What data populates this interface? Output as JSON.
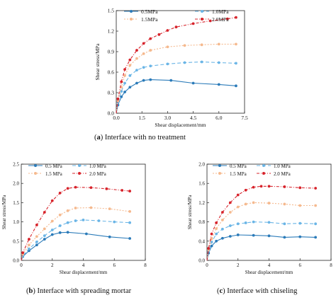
{
  "captions": [
    {
      "letter": "a",
      "text": "Interface with no treatment"
    },
    {
      "letter": "b",
      "text": "Interface with spreading mortar"
    },
    {
      "letter": "c",
      "text": "Interface with chiseling"
    }
  ],
  "chart_data": [
    {
      "type": "line",
      "xlabel": "Shear displacement/mm",
      "ylabel": "Shear stress/MPa",
      "xlim": [
        0,
        7.5
      ],
      "ylim": [
        0,
        1.5
      ],
      "xticks": [
        "0.0",
        "1.5",
        "3.0",
        "4.5",
        "6.0",
        "7.5"
      ],
      "yticks": [
        "0.0",
        "0.3",
        "0.6",
        "0.9",
        "1.2",
        "1.5"
      ],
      "grid": false,
      "legend_position": "top-left",
      "series": [
        {
          "name": "0.5MPa",
          "color": "#2b7bb9",
          "x": [
            0,
            0.1,
            0.3,
            0.5,
            0.8,
            1.2,
            1.6,
            2.0,
            3.2,
            4.5,
            6.0,
            7.0
          ],
          "y": [
            0,
            0.12,
            0.24,
            0.31,
            0.38,
            0.44,
            0.48,
            0.49,
            0.48,
            0.44,
            0.42,
            0.4
          ]
        },
        {
          "name": "1.0MPa",
          "color": "#6ab5e6",
          "x": [
            0,
            0.1,
            0.3,
            0.5,
            0.8,
            1.2,
            1.6,
            2.0,
            3.0,
            4.0,
            5.0,
            6.0,
            7.0
          ],
          "y": [
            0,
            0.16,
            0.32,
            0.44,
            0.55,
            0.63,
            0.67,
            0.69,
            0.72,
            0.74,
            0.75,
            0.74,
            0.73
          ]
        },
        {
          "name": "1.5MPa",
          "color": "#f5b98e",
          "x": [
            0,
            0.1,
            0.3,
            0.5,
            0.8,
            1.2,
            1.6,
            2.0,
            3.0,
            4.0,
            5.0,
            6.0,
            7.0
          ],
          "y": [
            0,
            0.18,
            0.38,
            0.55,
            0.7,
            0.8,
            0.87,
            0.92,
            0.97,
            0.99,
            1.0,
            1.01,
            1.01
          ]
        },
        {
          "name": "2.0MPa",
          "color": "#d7232b",
          "x": [
            0,
            0.1,
            0.3,
            0.5,
            0.8,
            1.2,
            1.6,
            2.0,
            2.5,
            3.0,
            3.5,
            4.5,
            5.5,
            6.5,
            7.0
          ],
          "y": [
            0,
            0.21,
            0.46,
            0.64,
            0.78,
            0.92,
            1.02,
            1.09,
            1.15,
            1.21,
            1.26,
            1.31,
            1.35,
            1.38,
            1.4
          ]
        }
      ]
    },
    {
      "type": "line",
      "xlabel": "Shear displacement/mm",
      "ylabel": "Shear stress/MPa",
      "xlim": [
        0,
        8
      ],
      "ylim": [
        0,
        2.5
      ],
      "xticks": [
        "0",
        "2",
        "4",
        "6",
        "8"
      ],
      "yticks": [
        "0.0",
        "0.5",
        "1.0",
        "1.5",
        "2.0",
        "2.5"
      ],
      "grid": false,
      "legend_position": "top-left",
      "series": [
        {
          "name": "0.5 MPa",
          "color": "#2b7bb9",
          "x": [
            0,
            0.1,
            0.5,
            1,
            1.5,
            2,
            2.5,
            3,
            4.2,
            5.7,
            7.0
          ],
          "y": [
            0,
            0.1,
            0.25,
            0.4,
            0.55,
            0.67,
            0.72,
            0.73,
            0.69,
            0.61,
            0.57
          ]
        },
        {
          "name": "1.0 MPa",
          "color": "#6ab5e6",
          "x": [
            0,
            0.1,
            0.5,
            1,
            1.5,
            2,
            2.5,
            3,
            3.5,
            4,
            5,
            6,
            7
          ],
          "y": [
            0,
            0.12,
            0.3,
            0.48,
            0.64,
            0.79,
            0.9,
            0.98,
            1.03,
            1.05,
            1.03,
            1.0,
            0.98
          ]
        },
        {
          "name": "1.5 MPa",
          "color": "#f5b98e",
          "x": [
            0,
            0.1,
            0.5,
            1,
            1.5,
            2,
            2.5,
            3,
            3.5,
            4.5,
            5.7,
            7.0
          ],
          "y": [
            0,
            0.16,
            0.4,
            0.62,
            0.82,
            1.02,
            1.18,
            1.29,
            1.36,
            1.37,
            1.34,
            1.27
          ]
        },
        {
          "name": "2.0 MPa",
          "color": "#d7232b",
          "x": [
            0,
            0.1,
            0.5,
            1,
            1.5,
            2,
            2.5,
            3,
            3.5,
            4.5,
            5.5,
            6.5,
            7.0
          ],
          "y": [
            0,
            0.2,
            0.55,
            0.92,
            1.25,
            1.55,
            1.75,
            1.87,
            1.9,
            1.89,
            1.86,
            1.82,
            1.8
          ]
        }
      ]
    },
    {
      "type": "line",
      "xlabel": "Shear displacement/mm",
      "ylabel": "Shear stress/MPa",
      "xlim": [
        0,
        8
      ],
      "ylim": [
        0,
        2.0
      ],
      "xticks": [
        "0",
        "2",
        "4",
        "6",
        "8"
      ],
      "yticks": [
        "0.0",
        "0.4",
        "0.8",
        "1.2",
        "1.6",
        "2.0"
      ],
      "grid": false,
      "legend_position": "top-left",
      "series": [
        {
          "name": "0.5 MPa",
          "color": "#2b7bb9",
          "x": [
            0,
            0.1,
            0.3,
            0.6,
            1,
            1.5,
            2,
            3,
            4,
            5,
            6,
            7
          ],
          "y": [
            0,
            0.15,
            0.3,
            0.4,
            0.46,
            0.5,
            0.53,
            0.52,
            0.51,
            0.48,
            0.49,
            0.48
          ]
        },
        {
          "name": "1.0 MPa",
          "color": "#6ab5e6",
          "x": [
            0,
            0.1,
            0.3,
            0.6,
            1,
            1.5,
            2,
            2.5,
            3,
            4,
            5,
            6,
            7
          ],
          "y": [
            0,
            0.2,
            0.38,
            0.55,
            0.65,
            0.72,
            0.76,
            0.78,
            0.8,
            0.79,
            0.76,
            0.77,
            0.76
          ]
        },
        {
          "name": "1.5 MPa",
          "color": "#f5b98e",
          "x": [
            0,
            0.1,
            0.3,
            0.6,
            1,
            1.5,
            2,
            2.5,
            3,
            4,
            5,
            6,
            7
          ],
          "y": [
            0,
            0.22,
            0.45,
            0.66,
            0.84,
            1.0,
            1.11,
            1.17,
            1.2,
            1.19,
            1.17,
            1.14,
            1.14
          ]
        },
        {
          "name": "2.0 MPa",
          "color": "#d7232b",
          "x": [
            0,
            0.1,
            0.3,
            0.6,
            1,
            1.5,
            2,
            2.5,
            3,
            3.5,
            4,
            5,
            6,
            7
          ],
          "y": [
            0,
            0.25,
            0.55,
            0.78,
            1.0,
            1.2,
            1.36,
            1.46,
            1.52,
            1.54,
            1.54,
            1.53,
            1.51,
            1.5
          ]
        }
      ]
    }
  ]
}
